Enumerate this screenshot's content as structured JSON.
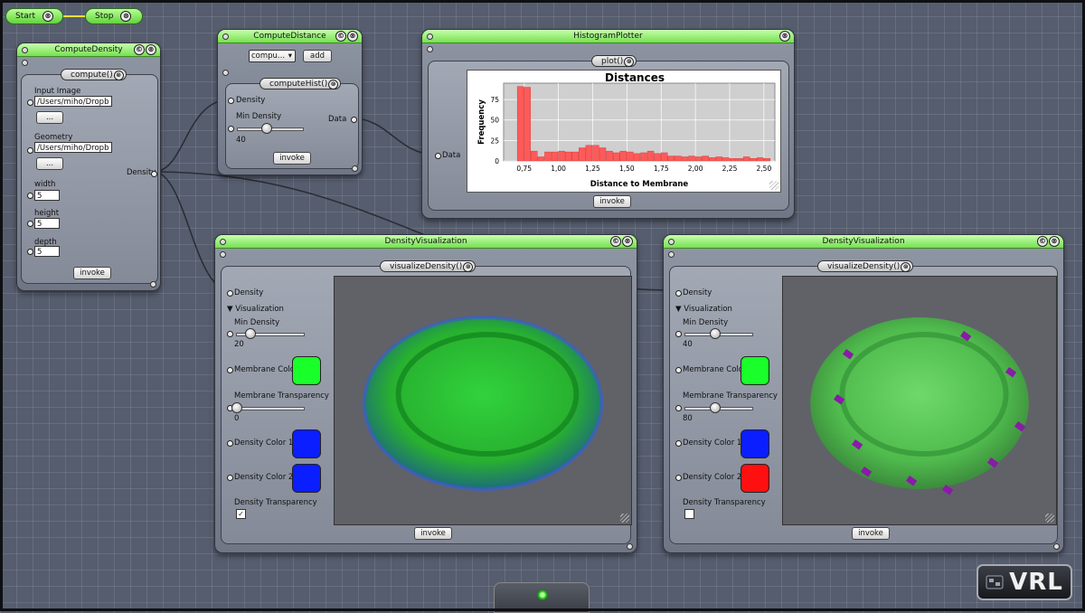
{
  "app": {
    "logo_text": "VRL"
  },
  "control": {
    "start": "Start",
    "stop": "Stop"
  },
  "compute_density": {
    "title": "ComputeDensity",
    "method": "compute()",
    "input_image_label": "Input Image",
    "input_image_value": "/Users/miho/Dropb",
    "browse1": "...",
    "geometry_label": "Geometry",
    "geometry_value": "/Users/miho/Dropb",
    "browse2": "...",
    "width_label": "width",
    "width_value": "5",
    "height_label": "height",
    "height_value": "5",
    "depth_label": "depth",
    "depth_value": "5",
    "output_label": "Density",
    "invoke": "invoke"
  },
  "compute_distance": {
    "title": "ComputeDistance",
    "select_value": "compu...",
    "add": "add",
    "method": "computeHist()",
    "density_label": "Density",
    "min_density_label": "Min Density",
    "min_density_value": "40",
    "min_density_fraction": 0.45,
    "output_label": "Data",
    "invoke": "invoke"
  },
  "histogram": {
    "title": "HistogramPlotter",
    "method": "plot()",
    "input_label": "Data",
    "invoke": "invoke"
  },
  "chart_data": {
    "type": "bar",
    "title": "Distances",
    "xlabel": "Distance to Membrane",
    "ylabel": "Frequency",
    "xlim": [
      0.6,
      2.58
    ],
    "ylim": [
      0,
      95
    ],
    "x_ticks": [
      "0,75",
      "1,00",
      "1,25",
      "1,50",
      "1,75",
      "2,00",
      "2,25",
      "2,50"
    ],
    "x_tick_values": [
      0.75,
      1.0,
      1.25,
      1.5,
      1.75,
      2.0,
      2.25,
      2.5
    ],
    "y_ticks": [
      "0",
      "25",
      "50",
      "75"
    ],
    "y_tick_values": [
      0,
      25,
      50,
      75
    ],
    "bin_width": 0.05,
    "bin_starts": [
      0.7,
      0.75,
      0.8,
      0.85,
      0.9,
      0.95,
      1.0,
      1.05,
      1.1,
      1.15,
      1.2,
      1.25,
      1.3,
      1.35,
      1.4,
      1.45,
      1.5,
      1.55,
      1.6,
      1.65,
      1.7,
      1.75,
      1.8,
      1.85,
      1.9,
      1.95,
      2.0,
      2.05,
      2.1,
      2.15,
      2.2,
      2.25,
      2.3,
      2.35,
      2.4,
      2.45,
      2.5
    ],
    "values": [
      91,
      90,
      12,
      5,
      11,
      11,
      12,
      11,
      11,
      16,
      19,
      19,
      16,
      12,
      10,
      12,
      11,
      9,
      10,
      12,
      9,
      10,
      6,
      6,
      5,
      6,
      5,
      6,
      4,
      5,
      4,
      3,
      3,
      5,
      3,
      4,
      3
    ],
    "bar_color": "#ff5a5a",
    "plot_bg": "#cfcfcf",
    "grid": true
  },
  "density_vis_1": {
    "title": "DensityVisualization",
    "method": "visualizeDensity()",
    "density_label": "Density",
    "visualization_label": "▼ Visualization",
    "min_density_label": "Min Density",
    "min_density_value": "20",
    "min_density_fraction": 0.2,
    "membrane_color_label": "Membrane Color",
    "membrane_color": "#19ff2a",
    "membrane_transparency_label": "Membrane Transparency",
    "membrane_transparency_value": "0",
    "membrane_transparency_fraction": 0.0,
    "density_color1_label": "Density Color 1",
    "density_color1": "#0b1eff",
    "density_color2_label": "Density Color 2",
    "density_color2": "#0b1eff",
    "density_transparency_label": "Density Transparency",
    "density_transparency_checked": "✓",
    "invoke": "invoke"
  },
  "density_vis_2": {
    "title": "DensityVisualization",
    "method": "visualizeDensity()",
    "density_label": "Density",
    "visualization_label": "▼ Visualization",
    "min_density_label": "Min Density",
    "min_density_value": "40",
    "min_density_fraction": 0.45,
    "membrane_color_label": "Membrane Color",
    "membrane_color": "#19ff2a",
    "membrane_transparency_label": "Membrane Transparency",
    "membrane_transparency_value": "80",
    "membrane_transparency_fraction": 0.45,
    "density_color1_label": "Density Color 1",
    "density_color1": "#0b1eff",
    "density_color2_label": "Density Color 2",
    "density_color2": "#ff1010",
    "density_transparency_label": "Density Transparency",
    "density_transparency_checked": "",
    "invoke": "invoke"
  },
  "icons": {
    "close": "⊗",
    "collapse": "©"
  }
}
